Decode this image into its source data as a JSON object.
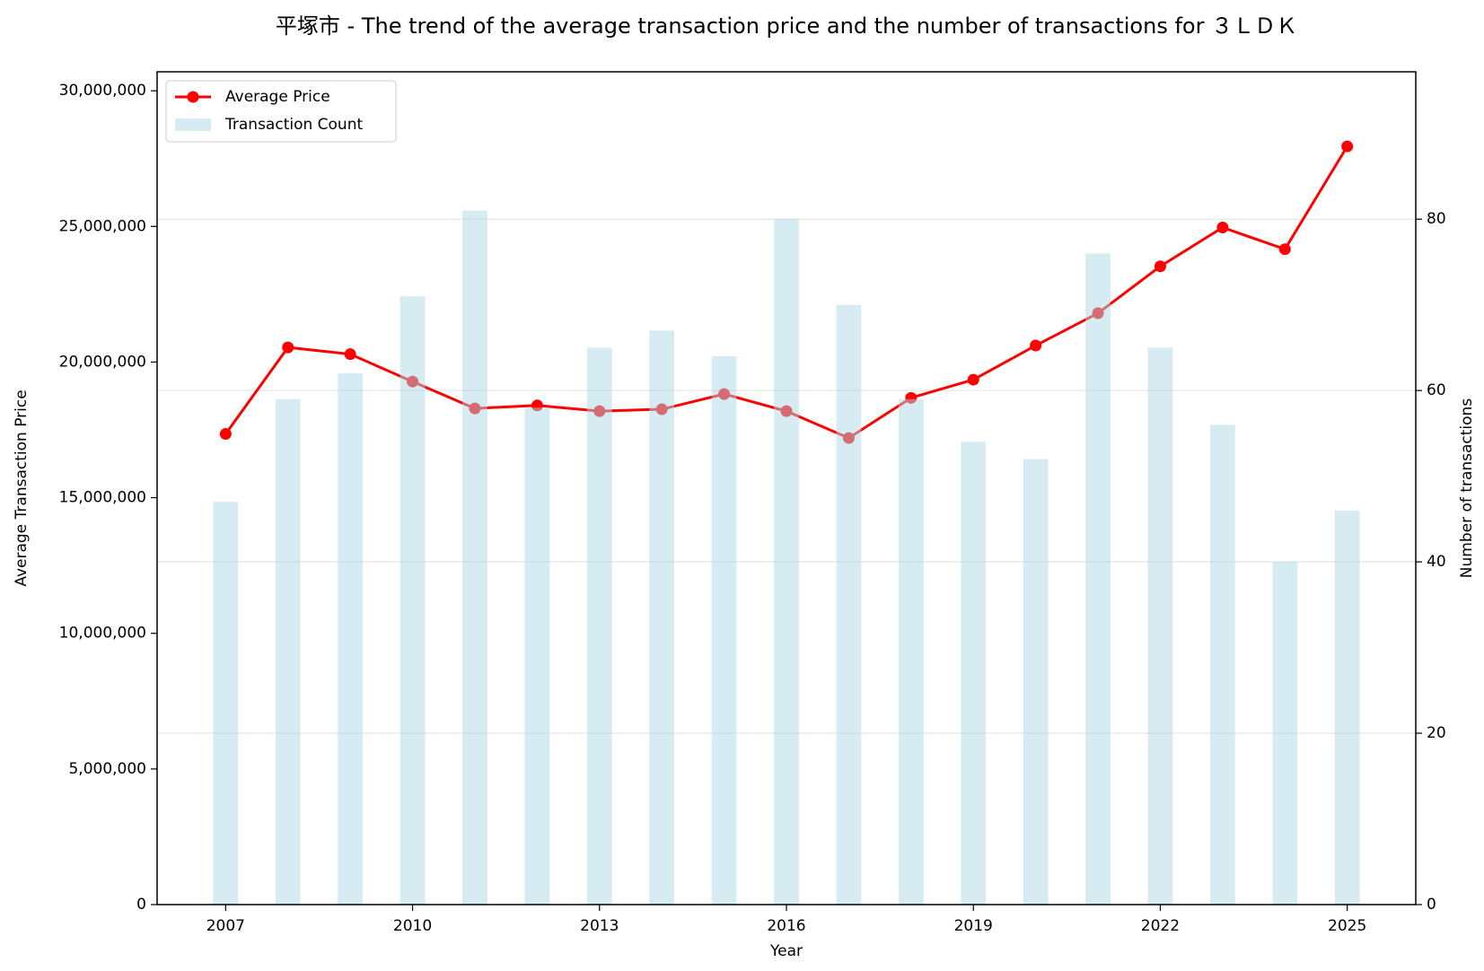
{
  "chart_data": {
    "type": "combo",
    "title": "平塚市 - The trend of the average transaction price and the number of transactions for ３ＬＤＫ",
    "x_label": "Year",
    "y_label": "Average Transaction Price",
    "y2_label": "Number of transactions",
    "x": [
      2007,
      2008,
      2009,
      2010,
      2011,
      2012,
      2013,
      2014,
      2015,
      2016,
      2017,
      2018,
      2019,
      2020,
      2021,
      2022,
      2023,
      2024,
      2025
    ],
    "series": [
      {
        "name": "Average Price",
        "type": "line",
        "color": "#ff0000",
        "axis": "y",
        "values": [
          17350000,
          20540000,
          20290000,
          19280000,
          18290000,
          18400000,
          18190000,
          18260000,
          18820000,
          18190000,
          17200000,
          18680000,
          19350000,
          20610000,
          21800000,
          23530000,
          24960000,
          24160000,
          27950000
        ]
      },
      {
        "name": "Transaction Count",
        "type": "bar",
        "color": "#add8e6",
        "axis": "y2",
        "values": [
          47,
          59,
          62,
          71,
          81,
          58,
          65,
          67,
          64,
          80,
          70,
          59,
          54,
          52,
          76,
          65,
          56,
          40,
          46
        ]
      }
    ],
    "xlim": [
      2005.9,
      2026.1
    ],
    "xticks": [
      2007,
      2010,
      2013,
      2016,
      2019,
      2022,
      2025
    ],
    "ylim": [
      0,
      30700000
    ],
    "yticks": [
      0,
      {
        "value": 5000000,
        "label": "5,000,000"
      },
      {
        "value": 10000000,
        "label": "10,000,000"
      },
      {
        "value": 15000000,
        "label": "15,000,000"
      },
      {
        "value": 20000000,
        "label": "20,000,000"
      },
      {
        "value": 25000000,
        "label": "25,000,000"
      },
      {
        "value": 30000000,
        "label": "30,000,000"
      }
    ],
    "y2lim": [
      0,
      97.2
    ],
    "y2ticks": [
      0,
      20,
      40,
      60,
      80
    ],
    "y_color": "#8b0000",
    "y2_color": "#00008b",
    "grid": true,
    "legend": "upper-left"
  }
}
